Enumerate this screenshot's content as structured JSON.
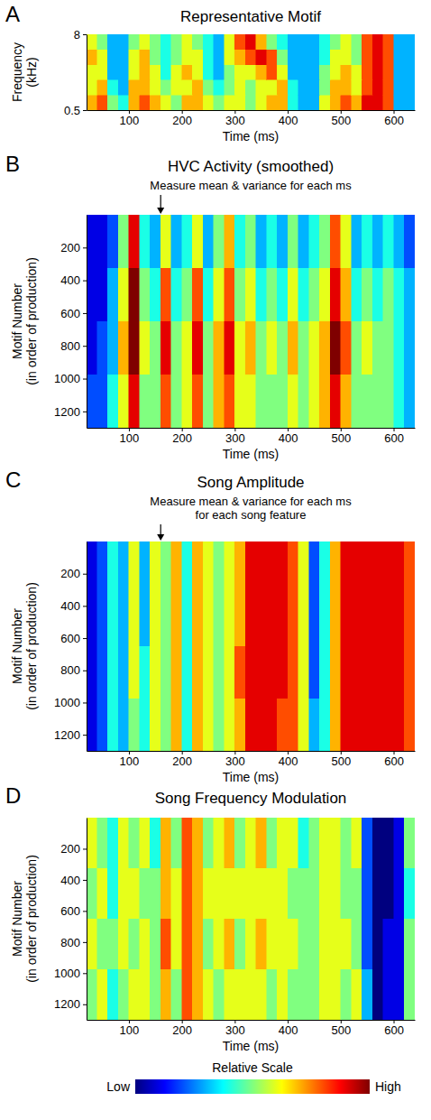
{
  "chart_data": [
    {
      "panel": "A",
      "type": "heatmap",
      "title": "Representative Motif",
      "x_label": "Time (ms)",
      "y_label": "Frequency (kHz)",
      "xlim": [
        20,
        640
      ],
      "xticks": [
        100,
        200,
        300,
        400,
        500,
        600
      ],
      "ylim": [
        0.5,
        8
      ],
      "yticks": [
        0.5,
        8
      ],
      "x_bins": [
        20,
        40,
        60,
        80,
        100,
        120,
        140,
        160,
        180,
        200,
        220,
        240,
        260,
        280,
        300,
        320,
        340,
        360,
        380,
        400,
        420,
        440,
        460,
        480,
        500,
        520,
        540,
        560,
        580,
        600,
        620,
        640
      ],
      "y_bins": [
        0.5,
        2,
        3.5,
        5,
        6.5,
        8
      ],
      "cells": [
        [
          7,
          8,
          5,
          4,
          7,
          8,
          7,
          6,
          5,
          7,
          7,
          6,
          5,
          6,
          6,
          5,
          6,
          7,
          7,
          4,
          3,
          3,
          6,
          7,
          8,
          7,
          9,
          9,
          8,
          3,
          3
        ],
        [
          6,
          7,
          4,
          3,
          7,
          7,
          6,
          5,
          6,
          6,
          7,
          5,
          4,
          5,
          6,
          5,
          6,
          6,
          7,
          4,
          3,
          3,
          5,
          7,
          7,
          6,
          8,
          9,
          8,
          3,
          3
        ],
        [
          6,
          6,
          3,
          3,
          6,
          7,
          6,
          4,
          6,
          7,
          6,
          4,
          3,
          5,
          6,
          6,
          7,
          8,
          6,
          3,
          3,
          3,
          5,
          6,
          7,
          6,
          8,
          9,
          8,
          3,
          3
        ],
        [
          7,
          6,
          3,
          3,
          6,
          7,
          5,
          4,
          5,
          6,
          6,
          4,
          3,
          6,
          7,
          8,
          9,
          8,
          5,
          3,
          3,
          3,
          4,
          6,
          6,
          5,
          8,
          9,
          8,
          3,
          3
        ],
        [
          6,
          5,
          3,
          3,
          5,
          6,
          5,
          4,
          5,
          6,
          5,
          4,
          3,
          6,
          8,
          9,
          7,
          5,
          4,
          3,
          3,
          3,
          4,
          5,
          6,
          5,
          8,
          9,
          8,
          3,
          3
        ]
      ]
    },
    {
      "panel": "B",
      "type": "heatmap",
      "title": "HVC Activity (smoothed)",
      "annotation": {
        "lines": [
          "Measure mean & variance for each ms"
        ],
        "x": 160
      },
      "x_label": "Time (ms)",
      "y_label": "Motif Number (in order of production)",
      "xlim": [
        20,
        640
      ],
      "xticks": [
        100,
        200,
        300,
        400,
        500,
        600
      ],
      "ylim": [
        1300,
        0
      ],
      "yticks": [
        200,
        400,
        600,
        800,
        1000,
        1200
      ],
      "x_bins": [
        20,
        40,
        60,
        80,
        100,
        120,
        140,
        160,
        180,
        200,
        220,
        240,
        260,
        280,
        300,
        320,
        340,
        360,
        380,
        400,
        420,
        440,
        460,
        480,
        500,
        520,
        540,
        560,
        580,
        600,
        620,
        640
      ],
      "y_bins": [
        0,
        325,
        650,
        975,
        1300
      ],
      "cells": [
        [
          1,
          1,
          2,
          5,
          9,
          4,
          3,
          6,
          3,
          4,
          6,
          3,
          5,
          7,
          4,
          5,
          3,
          4,
          3,
          5,
          3,
          4,
          5,
          8,
          6,
          3,
          4,
          3,
          4,
          3,
          2
        ],
        [
          1,
          1,
          3,
          6,
          10,
          5,
          4,
          8,
          4,
          5,
          8,
          4,
          6,
          8,
          5,
          6,
          4,
          5,
          4,
          6,
          4,
          5,
          6,
          9,
          7,
          4,
          5,
          4,
          5,
          4,
          3
        ],
        [
          1,
          2,
          3,
          7,
          10,
          6,
          5,
          9,
          5,
          6,
          9,
          5,
          7,
          9,
          6,
          7,
          5,
          6,
          5,
          7,
          5,
          6,
          7,
          10,
          8,
          5,
          6,
          5,
          5,
          4,
          3
        ],
        [
          2,
          2,
          4,
          6,
          9,
          5,
          5,
          8,
          5,
          6,
          8,
          5,
          7,
          8,
          6,
          6,
          5,
          5,
          5,
          6,
          5,
          6,
          7,
          9,
          7,
          5,
          5,
          5,
          5,
          4,
          3
        ]
      ]
    },
    {
      "panel": "C",
      "type": "heatmap",
      "title": "Song Amplitude",
      "annotation": {
        "lines": [
          "Measure mean & variance for each ms",
          "for each song feature"
        ],
        "x": 160
      },
      "x_label": "Time (ms)",
      "y_label": "Motif Number (in order of production)",
      "xlim": [
        20,
        640
      ],
      "xticks": [
        100,
        200,
        300,
        400,
        500,
        600
      ],
      "ylim": [
        1300,
        0
      ],
      "yticks": [
        200,
        400,
        600,
        800,
        1000,
        1200
      ],
      "x_bins": [
        20,
        40,
        60,
        80,
        100,
        120,
        140,
        160,
        180,
        200,
        220,
        240,
        260,
        280,
        300,
        320,
        340,
        360,
        380,
        400,
        420,
        440,
        460,
        480,
        500,
        520,
        540,
        560,
        580,
        600,
        620,
        640
      ],
      "y_bins": [
        0,
        325,
        650,
        975,
        1300
      ],
      "cells": [
        [
          1,
          2,
          4,
          3,
          6,
          3,
          6,
          5,
          7,
          4,
          7,
          6,
          5,
          6,
          7,
          9,
          9,
          9,
          9,
          8,
          6,
          2,
          4,
          7,
          9,
          9,
          9,
          9,
          9,
          9,
          8
        ],
        [
          1,
          2,
          4,
          3,
          6,
          3,
          6,
          5,
          7,
          4,
          7,
          6,
          5,
          6,
          7,
          9,
          9,
          9,
          9,
          8,
          6,
          2,
          4,
          7,
          9,
          9,
          9,
          9,
          9,
          9,
          8
        ],
        [
          1,
          2,
          4,
          3,
          6,
          4,
          6,
          5,
          7,
          4,
          7,
          6,
          5,
          6,
          8,
          9,
          9,
          9,
          9,
          8,
          6,
          2,
          4,
          7,
          9,
          9,
          9,
          9,
          9,
          9,
          8
        ],
        [
          1,
          2,
          4,
          3,
          5,
          4,
          6,
          5,
          7,
          4,
          7,
          6,
          5,
          6,
          7,
          9,
          9,
          9,
          8,
          8,
          6,
          3,
          4,
          7,
          9,
          9,
          9,
          9,
          9,
          9,
          8
        ]
      ]
    },
    {
      "panel": "D",
      "type": "heatmap",
      "title": "Song Frequency Modulation",
      "x_label": "Time (ms)",
      "y_label": "Motif Number (in order of production)",
      "xlim": [
        20,
        640
      ],
      "xticks": [
        100,
        200,
        300,
        400,
        500,
        600
      ],
      "ylim": [
        1300,
        0
      ],
      "yticks": [
        200,
        400,
        600,
        800,
        1000,
        1200
      ],
      "x_bins": [
        20,
        40,
        60,
        80,
        100,
        120,
        140,
        160,
        180,
        200,
        220,
        240,
        260,
        280,
        300,
        320,
        340,
        360,
        380,
        400,
        420,
        440,
        460,
        480,
        500,
        520,
        540,
        560,
        580,
        600,
        620,
        640
      ],
      "y_bins": [
        0,
        325,
        650,
        975,
        1300
      ],
      "cells": [
        [
          6,
          5,
          4,
          6,
          5,
          6,
          4,
          7,
          5,
          8,
          7,
          5,
          6,
          7,
          5,
          6,
          7,
          5,
          6,
          6,
          4,
          5,
          6,
          6,
          5,
          6,
          2,
          0,
          0,
          1,
          5
        ],
        [
          5,
          6,
          4,
          6,
          6,
          5,
          5,
          7,
          6,
          8,
          7,
          6,
          6,
          6,
          6,
          6,
          6,
          6,
          6,
          5,
          5,
          5,
          6,
          6,
          5,
          5,
          2,
          0,
          0,
          1,
          4
        ],
        [
          6,
          5,
          5,
          6,
          5,
          6,
          5,
          8,
          6,
          8,
          7,
          5,
          6,
          7,
          5,
          6,
          7,
          6,
          6,
          6,
          5,
          5,
          6,
          6,
          6,
          5,
          2,
          0,
          1,
          1,
          5
        ],
        [
          5,
          6,
          4,
          5,
          6,
          6,
          5,
          7,
          5,
          8,
          7,
          6,
          5,
          6,
          6,
          6,
          6,
          5,
          6,
          5,
          5,
          5,
          6,
          6,
          5,
          6,
          3,
          0,
          1,
          1,
          5
        ]
      ]
    }
  ],
  "colorbar": {
    "title": "Relative Scale",
    "range": [
      0,
      10
    ],
    "ticks": [
      {
        "value": 0,
        "label": "Low"
      },
      {
        "value": 10,
        "label": "High"
      }
    ]
  }
}
